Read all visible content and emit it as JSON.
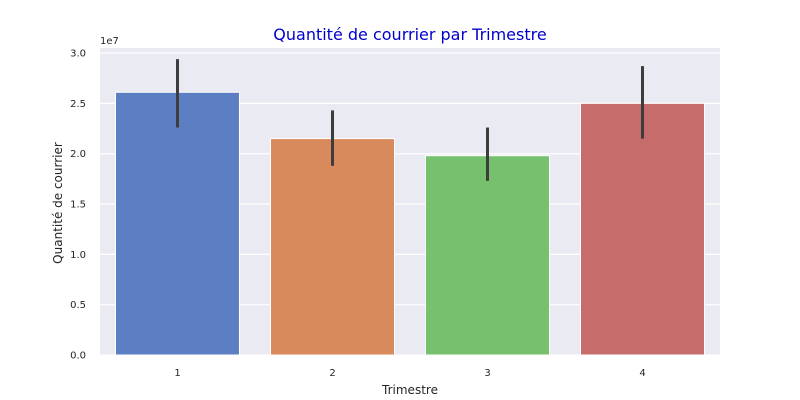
{
  "chart_data": {
    "type": "bar",
    "title": "Quantité de courrier par Trimestre",
    "xlabel": "Trimestre",
    "ylabel": "Quantité de courrier",
    "scale_label": "1e7",
    "categories": [
      "1",
      "2",
      "3",
      "4"
    ],
    "values": [
      2.61,
      2.15,
      1.98,
      2.5
    ],
    "error_low": [
      2.26,
      1.88,
      1.73,
      2.15
    ],
    "error_high": [
      2.94,
      2.43,
      2.26,
      2.87
    ],
    "ylim": [
      0,
      3.05
    ],
    "yticks": [
      "0.0",
      "0.5",
      "1.0",
      "1.5",
      "2.0",
      "2.5",
      "3.0"
    ],
    "colors": [
      "#5b7fc2",
      "#d98a5d",
      "#77c16e",
      "#c66d6c"
    ],
    "title_color": "#0000cc",
    "background": "#eaeaf2",
    "grid": true
  }
}
